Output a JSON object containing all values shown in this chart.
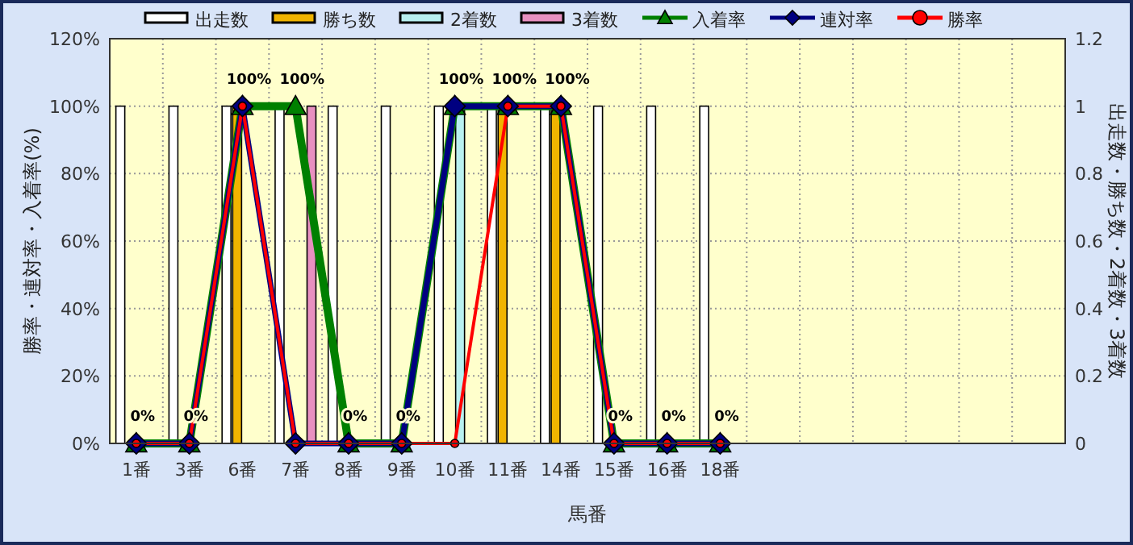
{
  "chart_data": {
    "type": "bar",
    "xlabel": "馬番",
    "ylabel": "勝率・連対率・入着率(%)",
    "y2label": "出走数・勝ち数・2着数・3着数",
    "categories": [
      "1番",
      "3番",
      "6番",
      "7番",
      "8番",
      "9番",
      "10番",
      "11番",
      "14番",
      "15番",
      "16番",
      "18番",
      null,
      null,
      null,
      null,
      null,
      null
    ],
    "series": [
      {
        "name": "出走数",
        "axis": "y2",
        "color": "#ffffff",
        "values": [
          1,
          1,
          1,
          1,
          1,
          1,
          1,
          1,
          1,
          1,
          1,
          1,
          null,
          null,
          null,
          null,
          null,
          null
        ]
      },
      {
        "name": "勝ち数",
        "axis": "y2",
        "color": "#f0b400",
        "values": [
          0,
          0,
          1,
          0,
          0,
          0,
          0,
          1,
          1,
          0,
          0,
          0,
          null,
          null,
          null,
          null,
          null,
          null
        ]
      },
      {
        "name": "2着数",
        "axis": "y2",
        "color": "#b8f0f0",
        "values": [
          0,
          0,
          0,
          0,
          0,
          0,
          1,
          0,
          0,
          0,
          0,
          0,
          null,
          null,
          null,
          null,
          null,
          null
        ]
      },
      {
        "name": "3着数",
        "axis": "y2",
        "color": "#e890c0",
        "values": [
          0,
          0,
          0,
          1,
          0,
          0,
          0,
          0,
          0,
          0,
          0,
          0,
          null,
          null,
          null,
          null,
          null,
          null
        ]
      },
      {
        "name": "入着率",
        "type": "line",
        "color": "#008000",
        "marker": "triangle",
        "values": [
          0,
          0,
          100,
          100,
          0,
          0,
          100,
          100,
          100,
          0,
          0,
          0,
          null,
          null,
          null,
          null,
          null,
          null
        ],
        "value_labels": [
          "0%",
          "0%",
          "100%",
          "100%",
          "0%",
          "0%",
          "100%",
          "100%",
          "100%",
          "0%",
          "0%",
          "0%",
          null,
          null,
          null,
          null,
          null,
          null
        ]
      },
      {
        "name": "連対率",
        "type": "line",
        "color": "#000080",
        "marker": "diamond",
        "values": [
          0,
          0,
          100,
          0,
          0,
          0,
          100,
          100,
          100,
          0,
          0,
          0,
          null,
          null,
          null,
          null,
          null,
          null
        ]
      },
      {
        "name": "勝率",
        "type": "line",
        "color": "#ff0000",
        "marker": "circle",
        "values": [
          0,
          0,
          100,
          0,
          0,
          0,
          0,
          100,
          100,
          0,
          0,
          0,
          null,
          null,
          null,
          null,
          null,
          null
        ]
      }
    ],
    "ylim": [
      0,
      120
    ],
    "yticks": [
      {
        "value": 0,
        "label": "0%"
      },
      {
        "value": 20,
        "label": "20%"
      },
      {
        "value": 40,
        "label": "40%"
      },
      {
        "value": 60,
        "label": "60%"
      },
      {
        "value": 80,
        "label": "80%"
      },
      {
        "value": 100,
        "label": "100%"
      },
      {
        "value": 120,
        "label": "120%"
      }
    ],
    "y2lim": [
      0,
      1.2
    ],
    "y2ticks": [
      0,
      0.2,
      0.4,
      0.6,
      0.8,
      1,
      1.2
    ],
    "grid": true,
    "legend": "top"
  }
}
